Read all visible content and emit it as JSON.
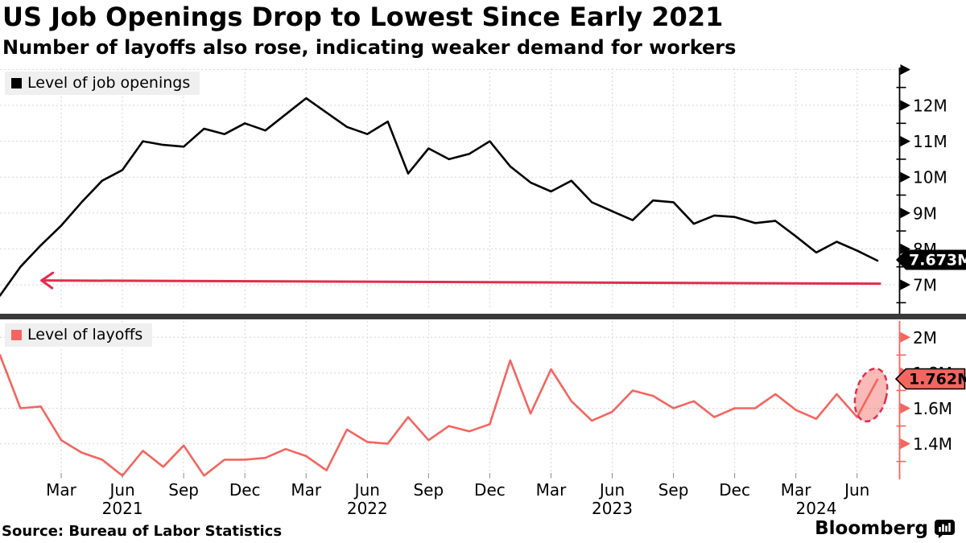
{
  "header": {
    "title": "US Job Openings Drop to Lowest Since Early 2021",
    "subtitle": "Number of layoffs also rose, indicating weaker demand for workers"
  },
  "source": "Source: Bureau of Labor Statistics",
  "branding": {
    "logo_text": "Bloomberg",
    "logo_icon": "bloomberg-terminal-icon"
  },
  "colors": {
    "openings_line": "#000000",
    "layoffs_line": "#f4655f",
    "annotation_red": "#e02e4d",
    "grid": "#d6d6d6",
    "legend_bg": "#efefef",
    "divider": "#3a3a3a",
    "badge_openings_bg": "#000000",
    "badge_openings_text": "#ffffff",
    "badge_layoffs_bg": "#f4655f",
    "badge_layoffs_text": "#000000"
  },
  "x_axis": {
    "months": [
      "2020-12",
      "2021-01",
      "2021-02",
      "2021-03",
      "2021-04",
      "2021-05",
      "2021-06",
      "2021-07",
      "2021-08",
      "2021-09",
      "2021-10",
      "2021-11",
      "2021-12",
      "2022-01",
      "2022-02",
      "2022-03",
      "2022-04",
      "2022-05",
      "2022-06",
      "2022-07",
      "2022-08",
      "2022-09",
      "2022-10",
      "2022-11",
      "2022-12",
      "2023-01",
      "2023-02",
      "2023-03",
      "2023-04",
      "2023-05",
      "2023-06",
      "2023-07",
      "2023-08",
      "2023-09",
      "2023-10",
      "2023-11",
      "2023-12",
      "2024-01",
      "2024-02",
      "2024-03",
      "2024-04",
      "2024-05",
      "2024-06",
      "2024-07"
    ],
    "ticks": [
      {
        "label": "Mar",
        "m": 3
      },
      {
        "label": "Jun",
        "m": 6
      },
      {
        "label": "Sep",
        "m": 9
      },
      {
        "label": "Dec",
        "m": 12
      },
      {
        "label": "Mar",
        "m": 15
      },
      {
        "label": "Jun",
        "m": 18
      },
      {
        "label": "Sep",
        "m": 21
      },
      {
        "label": "Dec",
        "m": 24
      },
      {
        "label": "Mar",
        "m": 27
      },
      {
        "label": "Jun",
        "m": 30
      },
      {
        "label": "Sep",
        "m": 33
      },
      {
        "label": "Dec",
        "m": 36
      },
      {
        "label": "Mar",
        "m": 39
      },
      {
        "label": "Jun",
        "m": 42
      }
    ],
    "years": [
      {
        "label": "2021",
        "m": 6
      },
      {
        "label": "2022",
        "m": 18
      },
      {
        "label": "2023",
        "m": 30
      },
      {
        "label": "2024",
        "m": 40
      }
    ]
  },
  "chart_data": [
    {
      "type": "line",
      "legend": "Level of job openings",
      "unit": "millions",
      "color": "#000000",
      "ylim": [
        6.5,
        13
      ],
      "y_ticks": [
        {
          "v": 12,
          "label": "12M"
        },
        {
          "v": 11,
          "label": "11M"
        },
        {
          "v": 10,
          "label": "10M"
        },
        {
          "v": 9,
          "label": "9M"
        },
        {
          "v": 8,
          "label": "8M"
        },
        {
          "v": 7,
          "label": "7M"
        }
      ],
      "y_minor_ticks": [
        12.5,
        11.5,
        10.5,
        9.5,
        8.5,
        7.5,
        6.5
      ],
      "y_gridlines": [
        13,
        12,
        11,
        10,
        9,
        8,
        7
      ],
      "values": [
        6.7,
        7.5,
        8.1,
        8.65,
        9.3,
        9.9,
        10.2,
        11.0,
        10.9,
        10.85,
        11.35,
        11.2,
        11.5,
        11.3,
        11.75,
        12.2,
        11.8,
        11.4,
        11.2,
        11.55,
        10.1,
        10.8,
        10.5,
        10.65,
        11.0,
        10.3,
        9.85,
        9.6,
        9.9,
        9.3,
        9.05,
        8.8,
        9.35,
        9.3,
        8.7,
        8.93,
        8.89,
        8.72,
        8.78,
        8.35,
        7.9,
        8.2,
        7.95,
        7.673
      ],
      "end_label": "7.673M",
      "annotation": {
        "type": "arrow-left",
        "at_value": 7.12,
        "from_month_index": 43,
        "to_month_index": 2
      }
    },
    {
      "type": "line",
      "legend": "Level of layoffs",
      "unit": "millions",
      "color": "#f4655f",
      "ylim": [
        1.2,
        2.1
      ],
      "y_ticks": [
        {
          "v": 2,
          "label": "2M"
        },
        {
          "v": 1.8,
          "label": "1.8M"
        },
        {
          "v": 1.6,
          "label": "1.6M"
        },
        {
          "v": 1.4,
          "label": "1.4M"
        }
      ],
      "y_minor_ticks": [
        1.9,
        1.7,
        1.5,
        1.3
      ],
      "y_gridlines": [
        2,
        1.8,
        1.6,
        1.4
      ],
      "values": [
        1.9,
        1.6,
        1.61,
        1.42,
        1.35,
        1.31,
        1.22,
        1.36,
        1.27,
        1.39,
        1.22,
        1.31,
        1.31,
        1.32,
        1.37,
        1.33,
        1.25,
        1.48,
        1.41,
        1.4,
        1.55,
        1.42,
        1.5,
        1.47,
        1.51,
        1.87,
        1.57,
        1.82,
        1.64,
        1.53,
        1.58,
        1.7,
        1.67,
        1.6,
        1.64,
        1.55,
        1.6,
        1.6,
        1.68,
        1.59,
        1.54,
        1.68,
        1.55,
        1.762
      ],
      "end_label": "1.762M",
      "annotation": {
        "type": "ellipse-highlight",
        "months": [
          "2024-06",
          "2024-07"
        ]
      }
    }
  ]
}
